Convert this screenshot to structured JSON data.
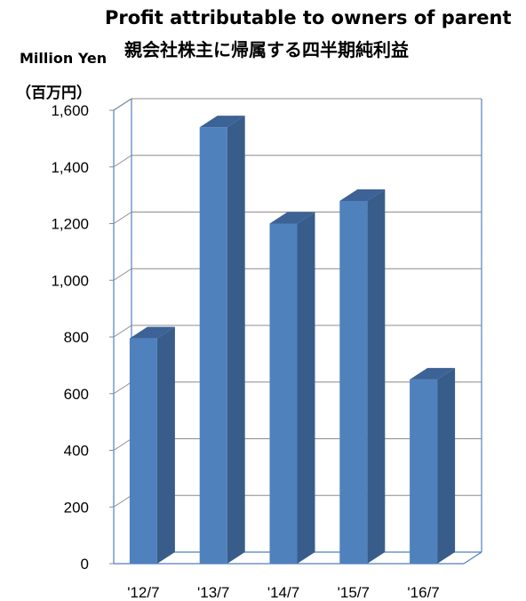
{
  "chart_data": {
    "type": "bar",
    "title": "Profit attributable to owners of parent",
    "subtitle": "親会社株主に帰属する四半期純利益",
    "ylabel": "Million Yen",
    "ylabel_sub": "（百万円）",
    "categories": [
      "'12/7",
      "'13/7",
      "'14/7",
      "'15/7",
      "'16/7"
    ],
    "values": [
      795,
      1540,
      1200,
      1280,
      650
    ],
    "yticks": [
      "0",
      "200",
      "400",
      "600",
      "800",
      "1,000",
      "1,200",
      "1,400",
      "1,600"
    ],
    "ylim": [
      0,
      1600
    ],
    "grid": true,
    "legend": "none",
    "colors": {
      "bar_front": "#4F81BD",
      "bar_side": "#385D8A",
      "bar_top": "#3C6296",
      "grid": "#8C8C8C",
      "wall": "#4F81BD"
    }
  }
}
